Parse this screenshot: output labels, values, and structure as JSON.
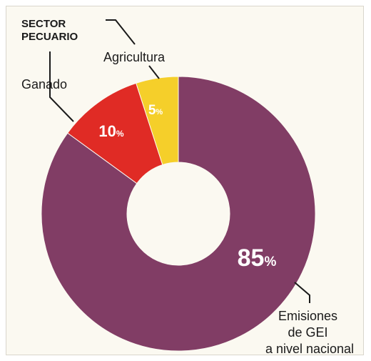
{
  "chart_data": {
    "type": "pie",
    "donut": true,
    "title": "",
    "group_label_line1": "SECTOR",
    "group_label_line2": "PECUARIO",
    "slices": [
      {
        "label": "Agricultura",
        "value": 5,
        "value_text": "5",
        "color": "#f5cf2a"
      },
      {
        "label": "Ganado",
        "value": 10,
        "value_text": "10",
        "color": "#e02b25"
      },
      {
        "label_lines": [
          "Emisiones",
          "de GEI",
          "a nivel nacional"
        ],
        "value": 85,
        "value_text": "85",
        "color": "#813d65"
      }
    ],
    "percent_sign": "%"
  }
}
